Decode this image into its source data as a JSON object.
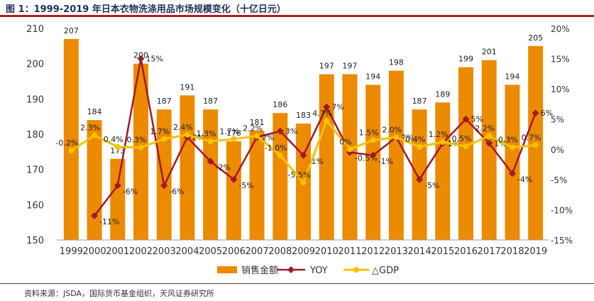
{
  "title": "图 1：1999-2019 年日本衣物洗涤用品市场规模变化（十亿日元）",
  "source": "资料来源：JSDA，国际货币基金组织，天风证券研究所",
  "colors": {
    "bar": "#ec8a00",
    "yoy": "#a3192a",
    "gdp": "#f5c200",
    "title_rule": "#b01f24"
  },
  "chart_data": {
    "type": "bar",
    "categories": [
      "1999",
      "2000",
      "2001",
      "2002",
      "2003",
      "2004",
      "2005",
      "2006",
      "2007",
      "2008",
      "2009",
      "2010",
      "2011",
      "2012",
      "2013",
      "2014",
      "2015",
      "2016",
      "2017",
      "2018",
      "2019"
    ],
    "series": [
      {
        "name": "销售金额",
        "type": "bar",
        "axis": "left",
        "values": [
          207,
          184,
          173,
          200,
          187,
          191,
          187,
          178,
          181,
          186,
          183,
          197,
          197,
          194,
          198,
          187,
          189,
          199,
          201,
          194,
          205
        ],
        "labels": [
          "207",
          "184",
          "173",
          "200",
          "187",
          "191",
          "187",
          "178",
          "181",
          "186",
          "183",
          "197",
          "197",
          "194",
          "198",
          "187",
          "189",
          "199",
          "201",
          "194",
          "205"
        ]
      },
      {
        "name": "YOY",
        "type": "line",
        "axis": "right",
        "values": [
          null,
          -11,
          -6,
          15,
          -6,
          2,
          -2,
          -5,
          2,
          3,
          -1,
          7,
          -0.5,
          -1,
          2,
          -5,
          1,
          5,
          1,
          -4,
          6
        ],
        "labels": [
          "",
          "-11%",
          "-6%",
          "15%",
          "-6%",
          "2%",
          "-2%",
          "-5%",
          "2%",
          "3%",
          "-1%",
          "7%",
          "-0.5%",
          "-1%",
          "2%",
          "-5%",
          "1%",
          "5%",
          "1%",
          "-4%",
          "6%"
        ]
      },
      {
        "name": "GDP",
        "type": "line",
        "axis": "right",
        "values": [
          -0.2,
          2.3,
          0.4,
          0.3,
          1.7,
          2.4,
          1.3,
          1.7,
          2.2,
          -1.0,
          -5.5,
          4.7,
          0,
          1.5,
          2.0,
          0.4,
          1.2,
          0.5,
          2.2,
          0.3,
          0.7
        ],
        "labels": [
          "-0.2%",
          "2.3%",
          "0.4%",
          "0.3%",
          "1.7%",
          "2.4%",
          "1.3%",
          "1.7%",
          "2.2%",
          "-1.0%",
          "-5.5%",
          "4.7%",
          "0%",
          "1.5%",
          "2.0%",
          "0.4%",
          "1.2%",
          "0.5%",
          "2.2%",
          "0.3%",
          "0.7%"
        ]
      }
    ],
    "ylim_left": [
      150,
      210
    ],
    "yticks_left": [
      "150",
      "160",
      "170",
      "180",
      "190",
      "200",
      "210"
    ],
    "ylim_right": [
      -15,
      20
    ],
    "yticks_right": [
      "-15%",
      "-10%",
      "-5%",
      "0%",
      "5%",
      "10%",
      "15%",
      "20%"
    ],
    "legend": {
      "position": "bottom",
      "entries": [
        "销售金额",
        "YOY",
        "△GDP"
      ]
    }
  }
}
